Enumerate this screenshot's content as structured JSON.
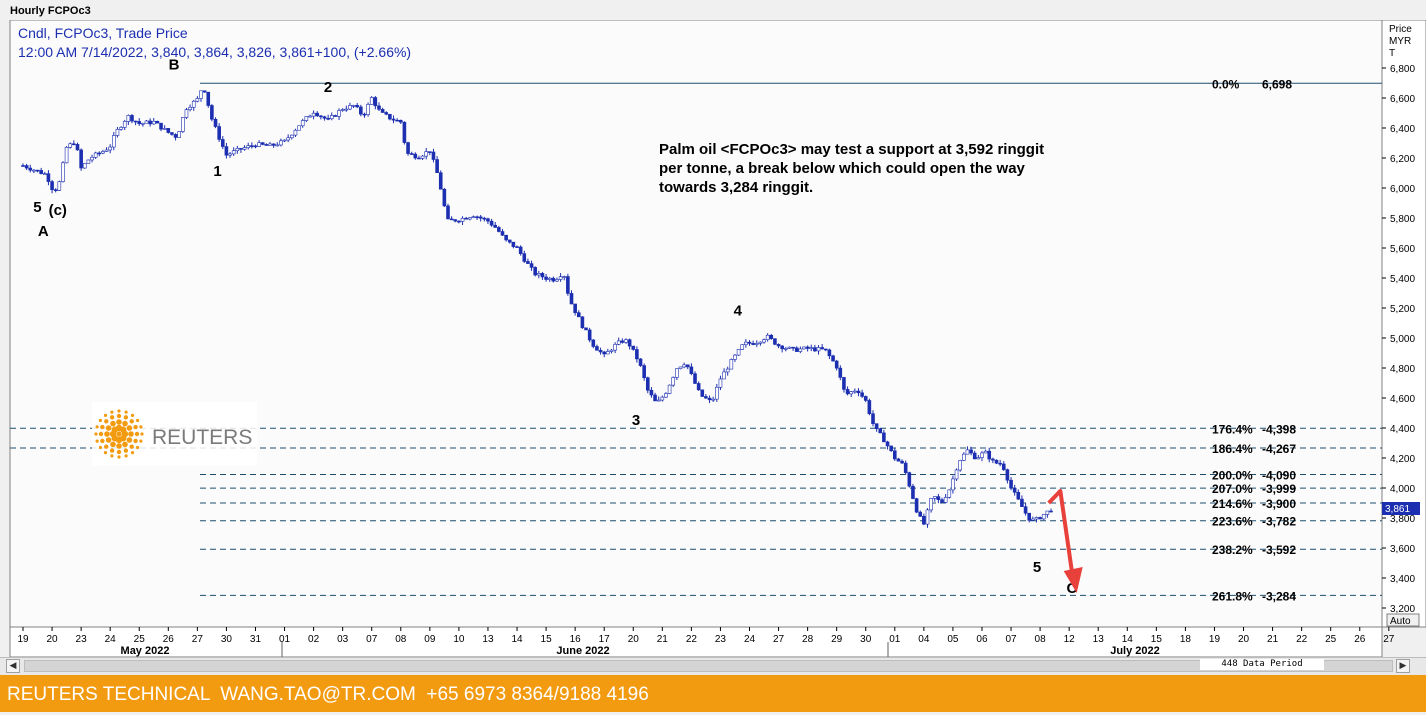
{
  "window": {
    "title": "Hourly FCPOc3"
  },
  "legend": {
    "line1": "Cndl, FCPOc3, Trade Price",
    "line2": "12:00 AM 7/14/2022, 3,840, 3,864, 3,826, 3,861+100, (+2.66%)"
  },
  "price_axis": {
    "title_lines": [
      "Price",
      "MYR",
      "T"
    ],
    "current_price_label": "3,861",
    "auto_label": "Auto"
  },
  "chart_data": {
    "type": "line",
    "series_type": "candlestick",
    "ylabel": "Price MYR T",
    "ylim": [
      3180,
      6900
    ],
    "y_ticks": [
      3200,
      3400,
      3600,
      3800,
      4000,
      4200,
      4400,
      4600,
      4800,
      5000,
      5200,
      5400,
      5600,
      5800,
      6000,
      6200,
      6400,
      6600,
      6800
    ],
    "x_ticks": [
      "19",
      "20",
      "23",
      "24",
      "25",
      "26",
      "27",
      "30",
      "31",
      "01",
      "02",
      "03",
      "07",
      "08",
      "09",
      "10",
      "13",
      "14",
      "15",
      "16",
      "17",
      "20",
      "21",
      "22",
      "23",
      "24",
      "27",
      "28",
      "29",
      "30",
      "01",
      "04",
      "05",
      "06",
      "07",
      "08",
      "12",
      "13",
      "14",
      "15",
      "18",
      "19",
      "20",
      "21",
      "22",
      "25",
      "26",
      "27"
    ],
    "month_labels": [
      {
        "label": "May 2022",
        "after_tick": 4
      },
      {
        "label": "June 2022",
        "after_tick": 17
      },
      {
        "label": "July 2022",
        "after_tick": 37
      }
    ],
    "price_path": [
      [
        0,
        6150
      ],
      [
        0.4,
        6120
      ],
      [
        0.8,
        6090
      ],
      [
        1,
        6000
      ],
      [
        1.2,
        5990
      ],
      [
        1.5,
        6270
      ],
      [
        1.8,
        6310
      ],
      [
        2,
        6130
      ],
      [
        2.3,
        6200
      ],
      [
        2.8,
        6250
      ],
      [
        3,
        6280
      ],
      [
        3.2,
        6370
      ],
      [
        3.6,
        6480
      ],
      [
        4,
        6430
      ],
      [
        4.5,
        6440
      ],
      [
        5,
        6370
      ],
      [
        5.3,
        6340
      ],
      [
        5.6,
        6530
      ],
      [
        6,
        6590
      ],
      [
        6.2,
        6690
      ],
      [
        6.5,
        6460
      ],
      [
        6.8,
        6310
      ],
      [
        7,
        6220
      ],
      [
        7.5,
        6260
      ],
      [
        8,
        6290
      ],
      [
        8.5,
        6280
      ],
      [
        9,
        6310
      ],
      [
        9.5,
        6420
      ],
      [
        10,
        6510
      ],
      [
        10.5,
        6450
      ],
      [
        11,
        6530
      ],
      [
        11.4,
        6550
      ],
      [
        11.7,
        6480
      ],
      [
        12,
        6600
      ],
      [
        12.3,
        6500
      ],
      [
        12.7,
        6460
      ],
      [
        13,
        6440
      ],
      [
        13.2,
        6230
      ],
      [
        13.6,
        6210
      ],
      [
        14,
        6250
      ],
      [
        14.3,
        6070
      ],
      [
        14.6,
        5780
      ],
      [
        15,
        5790
      ],
      [
        15.5,
        5820
      ],
      [
        16,
        5780
      ],
      [
        16.3,
        5730
      ],
      [
        16.6,
        5650
      ],
      [
        17,
        5600
      ],
      [
        17.3,
        5510
      ],
      [
        17.6,
        5430
      ],
      [
        18,
        5400
      ],
      [
        18.3,
        5390
      ],
      [
        18.6,
        5440
      ],
      [
        18.8,
        5260
      ],
      [
        19.2,
        5100
      ],
      [
        19.6,
        4960
      ],
      [
        20,
        4880
      ],
      [
        20.3,
        4940
      ],
      [
        20.6,
        4980
      ],
      [
        20.8,
        4980
      ],
      [
        21.2,
        4840
      ],
      [
        21.5,
        4650
      ],
      [
        21.8,
        4560
      ],
      [
        22.1,
        4630
      ],
      [
        22.5,
        4800
      ],
      [
        22.8,
        4840
      ],
      [
        23.3,
        4620
      ],
      [
        23.7,
        4570
      ],
      [
        24,
        4730
      ],
      [
        24.4,
        4850
      ],
      [
        24.8,
        4960
      ],
      [
        25.2,
        4970
      ],
      [
        25.6,
        5010
      ],
      [
        26,
        4950
      ],
      [
        26.5,
        4920
      ],
      [
        27,
        4930
      ],
      [
        27.6,
        4920
      ],
      [
        28,
        4810
      ],
      [
        28.3,
        4620
      ],
      [
        28.7,
        4660
      ],
      [
        29,
        4580
      ],
      [
        29.3,
        4400
      ],
      [
        29.6,
        4330
      ],
      [
        30,
        4200
      ],
      [
        30.3,
        4150
      ],
      [
        30.5,
        4020
      ],
      [
        30.8,
        3820
      ],
      [
        31,
        3760
      ],
      [
        31.3,
        3950
      ],
      [
        31.6,
        3900
      ],
      [
        31.9,
        4000
      ],
      [
        32.2,
        4180
      ],
      [
        32.5,
        4250
      ],
      [
        32.8,
        4200
      ],
      [
        33.1,
        4240
      ],
      [
        33.4,
        4170
      ],
      [
        33.7,
        4160
      ],
      [
        34,
        4000
      ],
      [
        34.3,
        3900
      ],
      [
        34.6,
        3800
      ],
      [
        34.8,
        3780
      ],
      [
        35.1,
        3820
      ],
      [
        35.4,
        3861
      ]
    ],
    "wave_labels": [
      {
        "text": "5",
        "x": 0.6,
        "y": 5840
      },
      {
        "text": "(c)",
        "x": 1.3,
        "y": 5820
      },
      {
        "text": "A",
        "x": 0.8,
        "y": 5680
      },
      {
        "text": "B",
        "x": 5.3,
        "y": 6790
      },
      {
        "text": "1",
        "x": 6.8,
        "y": 6080
      },
      {
        "text": "2",
        "x": 10.6,
        "y": 6640
      },
      {
        "text": "3",
        "x": 21.2,
        "y": 4420
      },
      {
        "text": "4",
        "x": 24.7,
        "y": 5150
      },
      {
        "text": "5",
        "x": 35.0,
        "y": 3440
      },
      {
        "text": "C",
        "x": 36.2,
        "y": 3300
      }
    ],
    "reference_line": {
      "label": "0.0%",
      "value_label": "6,698",
      "price": 6698
    },
    "fib_levels": [
      {
        "label": "176.4%",
        "value_label": "4,398",
        "price": 4398
      },
      {
        "label": "186.4%",
        "value_label": "4,267",
        "price": 4267
      },
      {
        "label": "200.0%",
        "value_label": "4,090",
        "price": 4090
      },
      {
        "label": "207.0%",
        "value_label": "3,999",
        "price": 3999
      },
      {
        "label": "214.6%",
        "value_label": "3,900",
        "price": 3900
      },
      {
        "label": "223.6%",
        "value_label": "3,782",
        "price": 3782
      },
      {
        "label": "238.2%",
        "value_label": "3,592",
        "price": 3592
      },
      {
        "label": "261.8%",
        "value_label": "3,284",
        "price": 3284
      }
    ],
    "annotation_lines": [
      "Palm oil <FCPOc3> may test a support at 3,592 ringgit",
      "per tonne, a break below which could open the way",
      "towards 3,284 ringgit."
    ],
    "arrow": {
      "from": [
        35.8,
        3980
      ],
      "mid": [
        35.4,
        3900
      ],
      "to": [
        36.5,
        3340
      ],
      "color": "#e8403a"
    },
    "candle_color": "#1c2fb0"
  },
  "logo": {
    "text": "REUTERS",
    "color": "#f39b10"
  },
  "navigator": {
    "data_period": "448 Data Period"
  },
  "footer": {
    "text": "REUTERS TECHNICAL  WANG.TAO@TR.COM  +65 6973 8364/9188 4196"
  }
}
